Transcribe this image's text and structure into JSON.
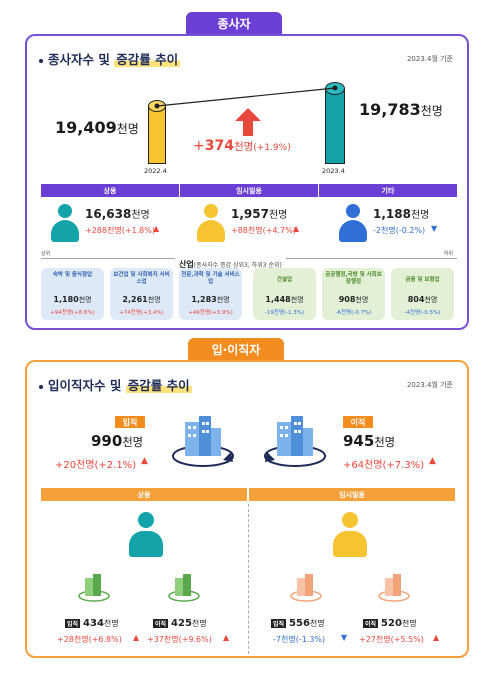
{
  "employees": {
    "tab": "종사자",
    "title_prefix": "종사자수 및 ",
    "title_hl": "증감률 추이",
    "basis": "2023.4월 기준",
    "prev": {
      "value": "19,409",
      "unit": "천명",
      "date": "2022.4"
    },
    "curr": {
      "value": "19,783",
      "unit": "천명",
      "date": "2023.4"
    },
    "change": {
      "sign": "+",
      "value": "374",
      "unit": "천명",
      "pct": "(+1.9%)"
    },
    "categories": [
      {
        "label": "상용",
        "value": "16,638",
        "unit": "천명",
        "change": "+288천명(+1.8%)",
        "direction": "up"
      },
      {
        "label": "임시일용",
        "value": "1,957",
        "unit": "천명",
        "change": "+88천명(+4.7%)",
        "direction": "up"
      },
      {
        "label": "기타",
        "value": "1,188",
        "unit": "천명",
        "change": "-2천명(-0.2%)",
        "direction": "down"
      }
    ],
    "industry_title": "산업",
    "industry_note": "(종사자수 증감 상위3, 하위3 순위)",
    "industry_left": "상위",
    "industry_right": "하위",
    "industries": [
      {
        "name": "숙박 및 음식점업",
        "value": "1,180",
        "unit": "천명",
        "change": "+94천명(+8.6%)",
        "group": "top"
      },
      {
        "name": "보건업 및 사회복지 서비스업",
        "value": "2,261",
        "unit": "천명",
        "change": "+74천명(+3.4%)",
        "group": "top"
      },
      {
        "name": "전문,과학 및 기술 서비스업",
        "value": "1,283",
        "unit": "천명",
        "change": "+49천명(+3.9%)",
        "group": "top"
      },
      {
        "name": "건설업",
        "value": "1,448",
        "unit": "천명",
        "change": "-19천명(-1.3%)",
        "group": "bottom"
      },
      {
        "name": "공공행정,국방 및 사회보장행정",
        "value": "908",
        "unit": "천명",
        "change": "-6천명(-0.7%)",
        "group": "bottom"
      },
      {
        "name": "금융 및 보험업",
        "value": "804",
        "unit": "천명",
        "change": "-4천명(-0.5%)",
        "group": "bottom"
      }
    ]
  },
  "turnover": {
    "tab": "입·이직자",
    "title_prefix": "입이직자수 및 ",
    "title_hl": "증감률 추이",
    "basis": "2023.4월 기준",
    "hire": {
      "badge": "입직",
      "value": "990",
      "unit": "천명",
      "change": "+20천명(+2.1%)"
    },
    "sep": {
      "badge": "이직",
      "value": "945",
      "unit": "천명",
      "change": "+64천명(+7.3%)"
    },
    "groups": [
      {
        "label": "상용",
        "hire": {
          "tag": "입직",
          "value": "434",
          "unit": "천명",
          "change": "+28천명(+6.8%)"
        },
        "sep": {
          "tag": "이직",
          "value": "425",
          "unit": "천명",
          "change": "+37천명(+9.6%)"
        }
      },
      {
        "label": "임시일용",
        "hire": {
          "tag": "입직",
          "value": "556",
          "unit": "천명",
          "change": "-7천명(-1.3%)"
        },
        "sep": {
          "tag": "이직",
          "value": "520",
          "unit": "천명",
          "change": "+27천명(+5.5%)"
        }
      }
    ]
  },
  "colors": {
    "purple": "#6b3fd3",
    "orange": "#f28c1e",
    "teal": "#14a3a8",
    "yellow": "#f6c431",
    "blue": "#2f6fd6",
    "red": "#e8473b"
  }
}
